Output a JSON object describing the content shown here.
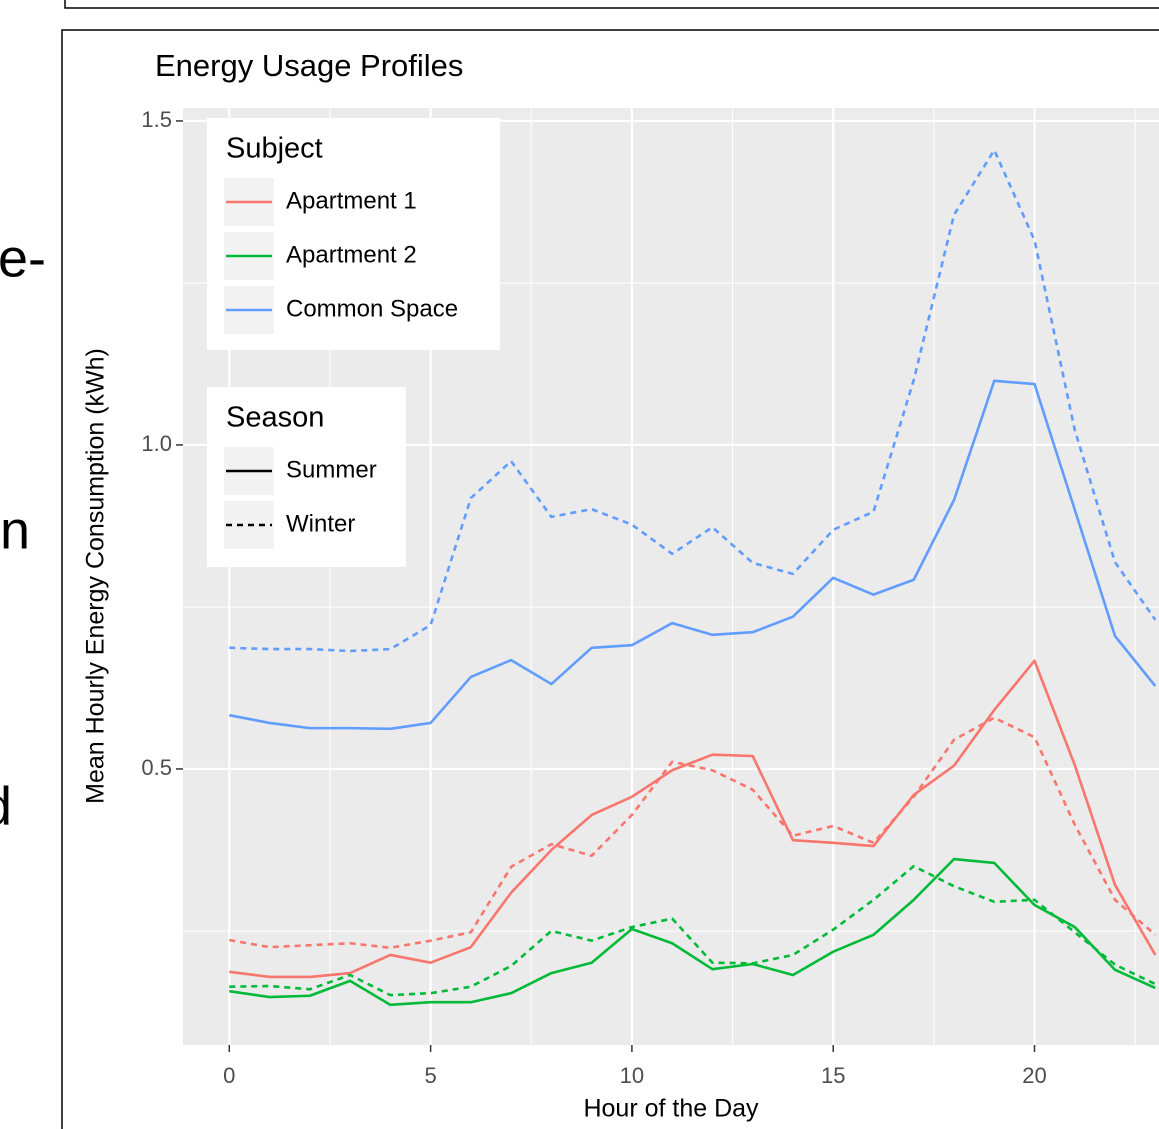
{
  "side_text": [
    "e-",
    "n",
    "d"
  ],
  "chart_data": {
    "type": "line",
    "title": "Energy Usage Profiles",
    "x_label": "Hour of the Day",
    "y_label": "Mean Hourly Energy Consumption (kWh)",
    "x": [
      0,
      1,
      2,
      3,
      4,
      5,
      6,
      7,
      8,
      9,
      10,
      11,
      12,
      13,
      14,
      15,
      16,
      17,
      18,
      19,
      20,
      21,
      22,
      23
    ],
    "xlim": [
      -1.15,
      24.15
    ],
    "xticks": [
      0,
      5,
      10,
      15,
      20
    ],
    "xminor": [
      2.5,
      7.5,
      12.5,
      17.5,
      22.5
    ],
    "ylim": [
      0.074,
      1.52
    ],
    "yticks": [
      0.5,
      {
        "value": 1,
        "label": "1.0"
      },
      1.5
    ],
    "yminor": [
      0.25,
      0.75,
      1.25
    ],
    "grid": true,
    "legend_position": "top-left",
    "legends": [
      {
        "title": "Subject",
        "entries": [
          {
            "label": "Apartment 1",
            "color": "#f8766d"
          },
          {
            "label": "Apartment 2",
            "color": "#00ba38"
          },
          {
            "label": "Common Space",
            "color": "#619cff"
          }
        ]
      },
      {
        "title": "Season",
        "entries": [
          {
            "label": "Summer",
            "dash": "solid"
          },
          {
            "label": "Winter",
            "dash": "dashed"
          }
        ]
      }
    ],
    "series": [
      {
        "subject": "Apartment 1",
        "season": "Summer",
        "values": [
          0.187,
          0.179,
          0.179,
          0.185,
          0.213,
          0.201,
          0.225,
          0.309,
          0.375,
          0.429,
          0.457,
          0.498,
          0.522,
          0.52,
          0.39,
          0.386,
          0.381,
          0.46,
          0.505,
          0.591,
          0.667,
          0.506,
          0.321,
          0.213
        ]
      },
      {
        "subject": "Apartment 1",
        "season": "Winter",
        "values": [
          0.236,
          0.225,
          0.228,
          0.231,
          0.224,
          0.235,
          0.248,
          0.349,
          0.384,
          0.366,
          0.429,
          0.511,
          0.498,
          0.468,
          0.397,
          0.412,
          0.386,
          0.457,
          0.545,
          0.579,
          0.549,
          0.414,
          0.298,
          0.244
        ]
      },
      {
        "subject": "Apartment 2",
        "season": "Summer",
        "values": [
          0.157,
          0.148,
          0.15,
          0.173,
          0.136,
          0.14,
          0.14,
          0.154,
          0.185,
          0.201,
          0.253,
          0.231,
          0.191,
          0.199,
          0.182,
          0.218,
          0.244,
          0.298,
          0.361,
          0.355,
          0.29,
          0.256,
          0.19,
          0.162
        ]
      },
      {
        "subject": "Apartment 2",
        "season": "Winter",
        "values": [
          0.164,
          0.165,
          0.16,
          0.182,
          0.151,
          0.154,
          0.164,
          0.196,
          0.25,
          0.235,
          0.256,
          0.269,
          0.201,
          0.2,
          0.213,
          0.252,
          0.298,
          0.35,
          0.319,
          0.295,
          0.298,
          0.248,
          0.198,
          0.168
        ]
      },
      {
        "subject": "Common Space",
        "season": "Summer",
        "values": [
          0.583,
          0.571,
          0.563,
          0.563,
          0.562,
          0.571,
          0.642,
          0.668,
          0.631,
          0.687,
          0.691,
          0.725,
          0.707,
          0.711,
          0.735,
          0.795,
          0.769,
          0.792,
          0.915,
          1.099,
          1.094,
          0.9,
          0.705,
          0.628
        ]
      },
      {
        "subject": "Common Space",
        "season": "Winter",
        "values": [
          0.687,
          0.685,
          0.685,
          0.682,
          0.685,
          0.722,
          0.918,
          0.975,
          0.889,
          0.901,
          0.877,
          0.832,
          0.873,
          0.818,
          0.801,
          0.869,
          0.897,
          1.1,
          1.355,
          1.455,
          1.316,
          1.023,
          0.819,
          0.73
        ]
      }
    ]
  }
}
